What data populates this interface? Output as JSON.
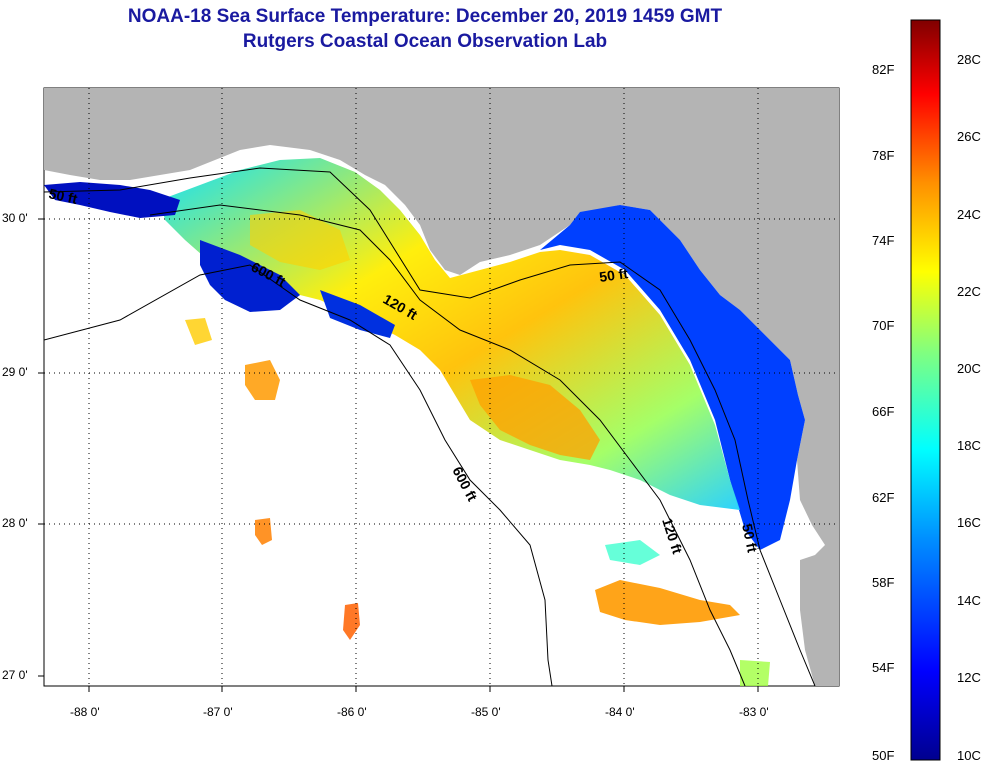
{
  "title": "NOAA-18 Sea Surface Temperature:  December 20, 2019 1459 GMT",
  "subtitle": "Rutgers Coastal Ocean Observation Lab",
  "axes": {
    "lat_ticks": [
      "30 0'",
      "29 0'",
      "28 0'",
      "27 0'"
    ],
    "lon_ticks": [
      "-88 0'",
      "-87 0'",
      "-86 0'",
      "-85 0'",
      "-84 0'",
      "-83 0'"
    ]
  },
  "isobaths": {
    "label_50": "50 ft",
    "label_120": "120 ft",
    "label_600": "600 ft"
  },
  "colorbar": {
    "fahrenheit": [
      "82F",
      "78F",
      "74F",
      "70F",
      "66F",
      "62F",
      "58F",
      "54F",
      "50F"
    ],
    "celsius": [
      "28C",
      "26C",
      "24C",
      "22C",
      "20C",
      "18C",
      "16C",
      "14C",
      "12C",
      "10C"
    ]
  },
  "colors": {
    "land": "#b4b4b4",
    "nodata": "#ffffff",
    "title": "#1a1aa0"
  }
}
